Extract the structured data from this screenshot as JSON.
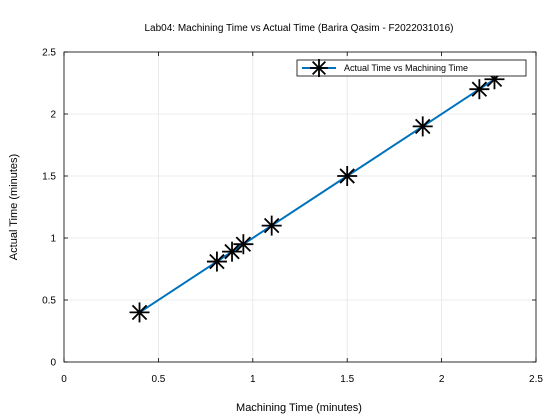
{
  "chart_data": {
    "type": "line",
    "title": "Lab04: Machining Time vs Actual Time (Barira Qasim - F2022031016)",
    "xlabel": "Machining Time (minutes)",
    "ylabel": "Actual Time (minutes)",
    "xlim": [
      0,
      2.5
    ],
    "ylim": [
      0,
      2.5
    ],
    "xticks": [
      "0",
      "0.5",
      "1",
      "1.5",
      "2",
      "2.5"
    ],
    "yticks": [
      "0",
      "0.5",
      "1",
      "1.5",
      "2",
      "2.5"
    ],
    "grid": true,
    "legend_position": "top-right",
    "series": [
      {
        "name": "Actual Time vs Machining Time",
        "color": "#0072bd",
        "marker": "asterisk",
        "marker_color": "#000000",
        "x": [
          0.4,
          0.81,
          0.89,
          0.95,
          1.1,
          1.5,
          1.9,
          2.2,
          2.28
        ],
        "y": [
          0.4,
          0.81,
          0.89,
          0.95,
          1.1,
          1.5,
          1.9,
          2.2,
          2.28
        ]
      }
    ]
  }
}
